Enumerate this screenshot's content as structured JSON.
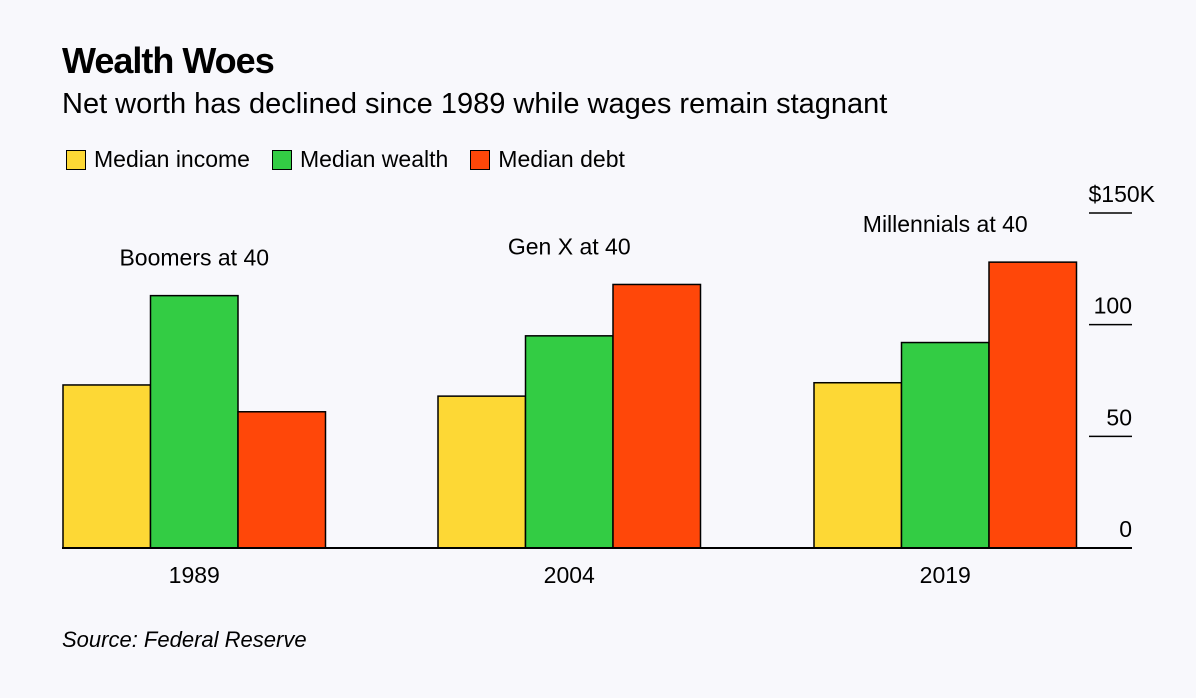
{
  "header": {
    "title": "Wealth Woes",
    "subtitle": "Net worth has declined since 1989 while wages remain stagnant"
  },
  "source": "Source: Federal Reserve",
  "colors": {
    "income": "#fdd835",
    "wealth": "#33cc44",
    "debt": "#ff4709"
  },
  "chart_data": {
    "type": "bar",
    "title": "Wealth Woes",
    "subtitle": "Net worth has declined since 1989 while wages remain stagnant",
    "categories": [
      "1989",
      "2004",
      "2019"
    ],
    "group_labels": [
      "Boomers at 40",
      "Gen X at 40",
      "Millennials at 40"
    ],
    "series": [
      {
        "name": "Median income",
        "color": "#fdd835",
        "values": [
          73,
          68,
          74
        ]
      },
      {
        "name": "Median wealth",
        "color": "#33cc44",
        "values": [
          113,
          95,
          92
        ]
      },
      {
        "name": "Median debt",
        "color": "#ff4709",
        "values": [
          61,
          118,
          128
        ]
      }
    ],
    "y_ticks": [
      "0",
      "50",
      "100",
      "$150K"
    ],
    "y_tick_values": [
      0,
      50,
      100,
      150
    ],
    "ylim": [
      0,
      150
    ],
    "y_axis_side": "right",
    "grid": false,
    "legend_placement": "top-left"
  }
}
